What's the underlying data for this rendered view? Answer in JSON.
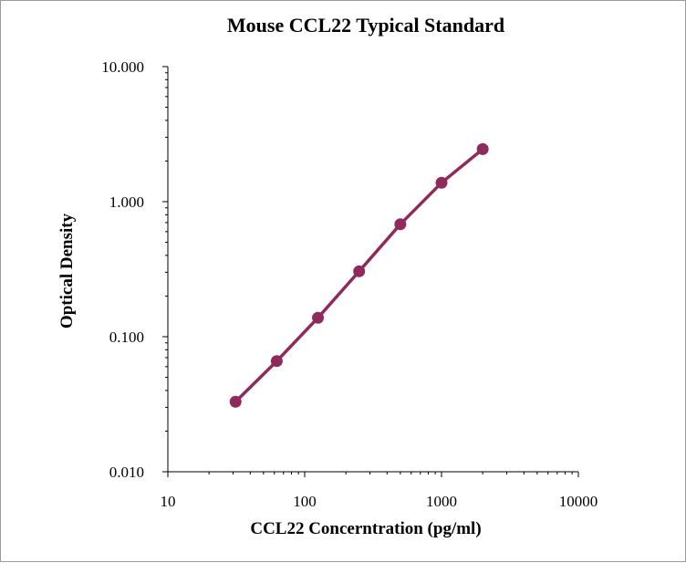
{
  "chart_data": {
    "type": "line",
    "title": "Mouse CCL22 Typical Standard",
    "xlabel": "CCL22 Concerntration (pg/ml)",
    "ylabel": "Optical Density",
    "x_scale": "log",
    "y_scale": "log",
    "xlim": [
      10,
      10000
    ],
    "ylim": [
      0.01,
      10
    ],
    "x_ticks": [
      10,
      100,
      1000,
      10000
    ],
    "x_tick_labels": [
      "10",
      "100",
      "1000",
      "10000"
    ],
    "y_ticks": [
      0.01,
      0.1,
      1,
      10
    ],
    "y_tick_labels": [
      "0.010",
      "0.100",
      "1.000",
      "10.000"
    ],
    "grid": false,
    "legend": "none",
    "series": [
      {
        "color": "#8e2a5c",
        "marker": "circle",
        "x": [
          31.25,
          62.5,
          125,
          250,
          500,
          1000,
          2000
        ],
        "y": [
          0.033,
          0.066,
          0.138,
          0.305,
          0.68,
          1.38,
          2.45
        ]
      }
    ]
  }
}
